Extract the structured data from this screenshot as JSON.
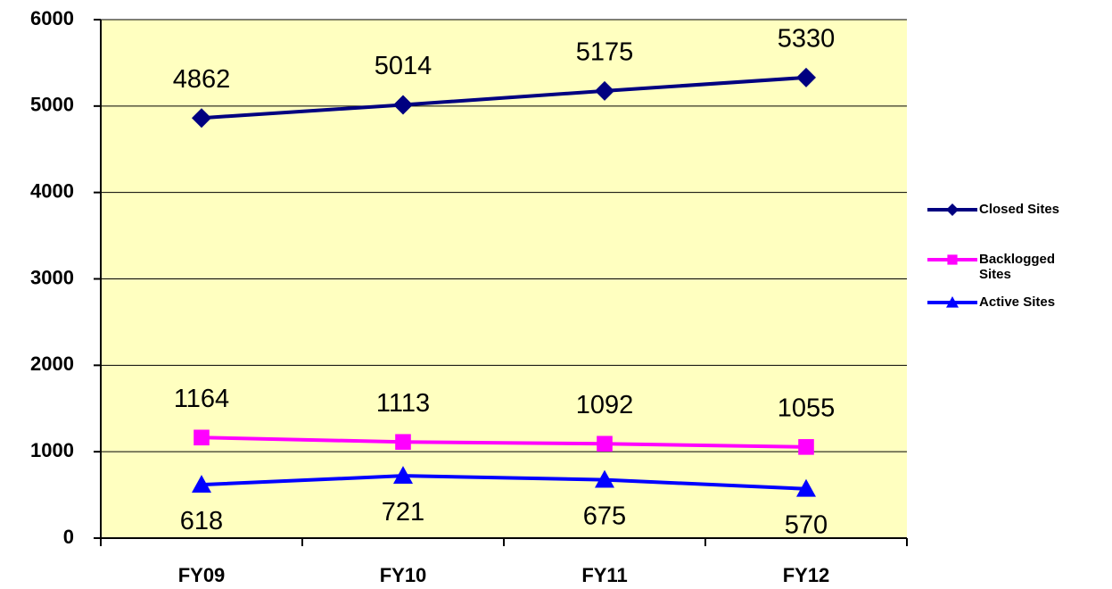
{
  "chart_data": {
    "type": "line",
    "categories": [
      "FY09",
      "FY10",
      "FY11",
      "FY12"
    ],
    "series": [
      {
        "name": "Closed Sites",
        "color": "#000080",
        "marker": "diamond",
        "label_position": "above",
        "values": [
          4862,
          5014,
          5175,
          5330
        ]
      },
      {
        "name": "Backlogged Sites",
        "color": "#ff00ff",
        "marker": "square",
        "label_position": "above",
        "values": [
          1164,
          1113,
          1092,
          1055
        ]
      },
      {
        "name": "Active Sites",
        "color": "#0000ff",
        "marker": "triangle",
        "label_position": "below",
        "values": [
          618,
          721,
          675,
          570
        ]
      }
    ],
    "ylim": [
      0,
      6000
    ],
    "yticks": [
      0,
      1000,
      2000,
      3000,
      4000,
      5000,
      6000
    ],
    "grid": true,
    "plot_background": "#ffffc0",
    "legend": "right"
  }
}
